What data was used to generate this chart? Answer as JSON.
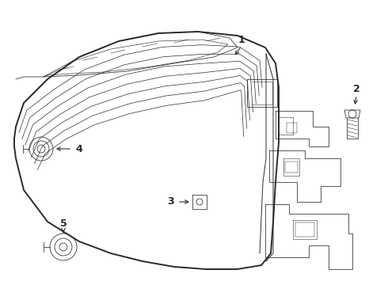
{
  "bg_color": "#ffffff",
  "line_color": "#2a2a2a",
  "label_color": "#000000",
  "lw_outer": 1.4,
  "lw_inner": 0.7,
  "lw_detail": 0.55,
  "figw": 4.9,
  "figh": 3.6,
  "dpi": 100
}
